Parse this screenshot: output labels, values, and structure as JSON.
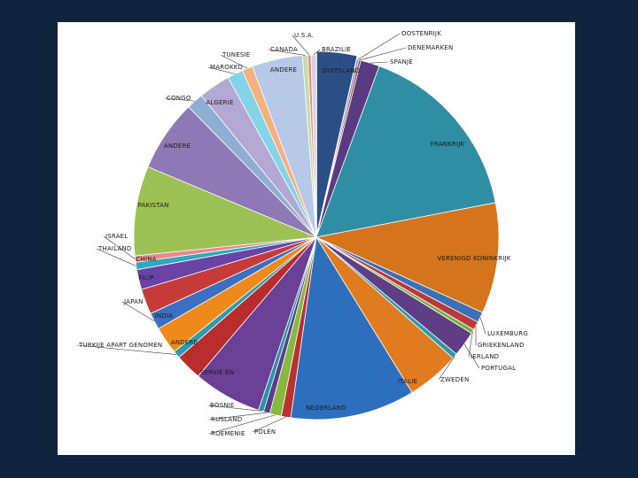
{
  "chart_data": {
    "type": "pie",
    "title": "",
    "start_angle": 0,
    "slices": [
      {
        "name": "DUITSLAND",
        "value": 3.8,
        "color": "#2b4f84"
      },
      {
        "name": "OOSTENRIJK",
        "value": 0.2,
        "color": "#6b8fc4"
      },
      {
        "name": "DENEMARKEN",
        "value": 0.2,
        "color": "#a33a3a"
      },
      {
        "name": "SPANJE",
        "value": 1.8,
        "color": "#5a3a80"
      },
      {
        "name": "FRANKRIJK",
        "value": 17.5,
        "color": "#2f8ea3"
      },
      {
        "name": "VERENIGD KONINKRIJK",
        "value": 10.5,
        "color": "#d4741c"
      },
      {
        "name": "LUXEMBURG",
        "value": 1.0,
        "color": "#3c6fb5"
      },
      {
        "name": "GRIEKENLAND",
        "value": 0.8,
        "color": "#b83a3a"
      },
      {
        "name": "IERLAND",
        "value": 0.4,
        "color": "#7bb03f"
      },
      {
        "name": "PORTUGAL",
        "value": 2.4,
        "color": "#5f3e86"
      },
      {
        "name": "ZWEDEN",
        "value": 0.5,
        "color": "#2a9aaa"
      },
      {
        "name": "ITALIE",
        "value": 5.0,
        "color": "#e07b20"
      },
      {
        "name": "NEDERLAND",
        "value": 11.8,
        "color": "#2e6fbd"
      },
      {
        "name": "POLEN",
        "value": 0.9,
        "color": "#b93232"
      },
      {
        "name": "ROEMENIE",
        "value": 1.1,
        "color": "#86b842"
      },
      {
        "name": "RUSLAND",
        "value": 0.6,
        "color": "#5a3d8a"
      },
      {
        "name": "BOSNIE",
        "value": 0.5,
        "color": "#2892a6"
      },
      {
        "name": "SERVIE EN",
        "value": 6.5,
        "color": "#6a3f96"
      },
      {
        "name": "ANDERE",
        "value": 2.5,
        "color": "#b82c2c"
      },
      {
        "name": "TURKIJE APART GENOMEN",
        "value": 0.7,
        "color": "#2a9bb0"
      },
      {
        "name": "INDIA",
        "value": 2.6,
        "color": "#ef8a1a"
      },
      {
        "name": "JAPAN",
        "value": 1.6,
        "color": "#3a6fc2"
      },
      {
        "name": "FILIP",
        "value": 2.4,
        "color": "#c63a3a"
      },
      {
        "name": "CHINA",
        "value": 1.9,
        "color": "#6a43a6"
      },
      {
        "name": "THAILAND",
        "value": 0.7,
        "color": "#33a6c0"
      },
      {
        "name": "ISRAEL",
        "value": 0.6,
        "color": "#e88888"
      },
      {
        "name": "PAKISTAN",
        "value": 8.5,
        "color": "#9cc155"
      },
      {
        "name": "ANDERE",
        "value": 6.8,
        "color": "#8e78b5"
      },
      {
        "name": "CONGO",
        "value": 1.6,
        "color": "#8faed4"
      },
      {
        "name": "ALGERIE",
        "value": 3.0,
        "color": "#b3a8d4"
      },
      {
        "name": "MAROKKO",
        "value": 1.5,
        "color": "#84d3e6"
      },
      {
        "name": "TUNESIE",
        "value": 1.0,
        "color": "#f5b07e"
      },
      {
        "name": "ANDERE",
        "value": 4.8,
        "color": "#b8c9e8"
      },
      {
        "name": "CANADA",
        "value": 0.5,
        "color": "#c6dca8"
      },
      {
        "name": "U.S.A.",
        "value": 0.3,
        "color": "#e68c7a"
      },
      {
        "name": "BRAZILIE",
        "value": 0.5,
        "color": "#d8d0e8"
      }
    ]
  }
}
